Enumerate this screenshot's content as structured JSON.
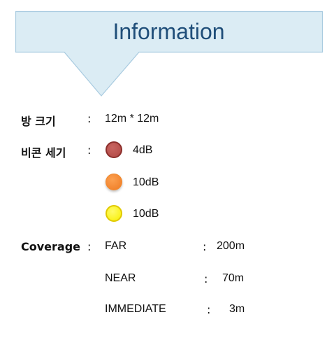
{
  "title": "Information",
  "room": {
    "label": "방 크기",
    "colon": ":",
    "value": "12m * 12m"
  },
  "beacon": {
    "label": "비콘 세기",
    "colon": ":",
    "levels": [
      {
        "value": "4dB",
        "color": "#b5504c",
        "icon": "dark-red-dot-icon"
      },
      {
        "value": "10dB",
        "color": "#f08a30",
        "icon": "orange-dot-icon"
      },
      {
        "value": "10dB",
        "color": "#fff200",
        "icon": "yellow-dot-icon"
      }
    ]
  },
  "coverage": {
    "label": "Coverage",
    "colon": ":",
    "rows": [
      {
        "name": "FAR",
        "colon": ":",
        "value": "200m"
      },
      {
        "name": "NEAR",
        "colon": ":",
        "value": "70m"
      },
      {
        "name": "IMMEDIATE",
        "colon": ":",
        "value": "3m"
      }
    ]
  },
  "colors": {
    "callout_fill": "#dbecf4",
    "callout_border": "#a9cbe0",
    "title": "#1f4e79"
  }
}
